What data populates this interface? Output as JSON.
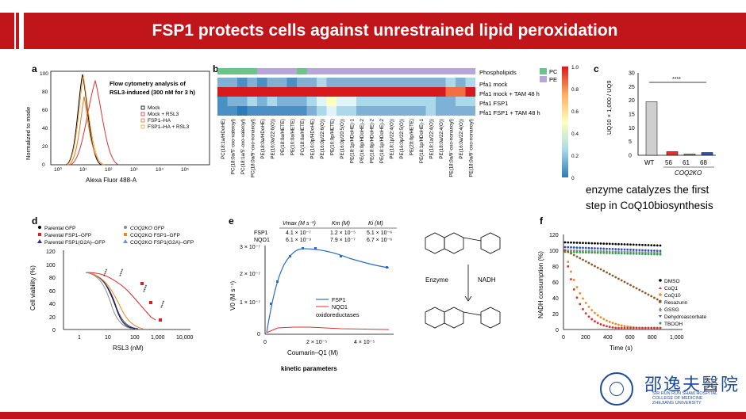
{
  "header": {
    "title": "FSP1 protects cells against unrestrained lipid peroxidation"
  },
  "panel_a": {
    "letter": "a",
    "ylabel": "Normalized to mode",
    "xlabel": "Alexa Fluor 488-A",
    "yticks": [
      "0",
      "20",
      "40",
      "60",
      "80",
      "100"
    ],
    "xticks": [
      "10⁰",
      "10¹",
      "10²",
      "10³",
      "10⁴",
      "10⁵"
    ],
    "annotation_line1": "Flow cytometry analysis of",
    "annotation_line2": "RSL3-induced (300 nM for 3 h)",
    "legend": [
      "Mock",
      "Mock + RSL3",
      "FSP1–HA",
      "FSP1–HA + RSL3"
    ],
    "colors": [
      "#000000",
      "#e03030",
      "#e07820",
      "#f2a23a"
    ]
  },
  "panel_b": {
    "letter": "b",
    "row_labels": [
      "Phospholipids",
      "Pfa1 mock",
      "Pfa1 mock + TAM 48 h",
      "Pfa1 FSP1",
      "Pfa1 FSP1 + TAM 48 h"
    ],
    "legend_pc": "PC",
    "legend_pe": "PE",
    "colorbar_ticks": [
      "1.0",
      "0.8",
      "0.6",
      "0.4",
      "0.2",
      "0"
    ],
    "col_labels": [
      "PC(18:1a/HDoHE)",
      "PC(18:0a/5’-oxo-valeroyl)",
      "PC(18:1a/5’-oxo-valeroyl)",
      "PC(18:0a/9’-oxo-nonanoyl)",
      "PE(18:0a/HDoHE)",
      "PE(16:0a/22:6(O))",
      "PE(18:0a/HETE)",
      "PE(16:0a/HETE)",
      "PC(18:0a/HETE)",
      "PE(16:0p/HDoHE)",
      "PE(16:0p/22:6(O))",
      "PE(16:0p/HETE)",
      "PE(16:0p/20:5(O))",
      "PE(18:1p/HDoHE)-1",
      "PE(16:0p/HDoHE)-2",
      "PE(18:0p/HDoHE)-2",
      "PE(18:1p/HDoHE)-2",
      "PE(18:1p/22:4(O))",
      "PE(16:0p/22:5(O))",
      "PE(20:0p/HETE)",
      "PE(18:1p/HDoHE)-1",
      "PE(18:1a/22:4(O))",
      "PE(18:0a/22:4(O))",
      "PE(18:0a/9’-oxo-nonanoyl)",
      "PE(16:0a/22:4(O))",
      "PE(18:0a/9’-oxo-nonanoyl)"
    ]
  },
  "panel_c": {
    "letter": "c",
    "ylabel": "UQ10 × 1,000 / UQ9",
    "yticks": [
      "0",
      "5",
      "10",
      "15",
      "20",
      "25",
      "30"
    ],
    "categories": [
      "WT",
      "56",
      "61",
      "68"
    ],
    "group_label": "COQ2KO",
    "significance": "****",
    "values": [
      19.5,
      1.3,
      0.4,
      1.0
    ]
  },
  "note_c": {
    "line1": "enzyme catalyzes the first",
    "line2": "step in CoQ10biosynthesis"
  },
  "panel_d": {
    "letter": "d",
    "ylabel": "Cell viability (%)",
    "xlabel": "RSL3 (nM)",
    "yticks": [
      "0",
      "20",
      "40",
      "60",
      "80",
      "100",
      "120"
    ],
    "xticks": [
      "1",
      "10",
      "100",
      "1,000",
      "10,000"
    ],
    "legend": [
      "Parental GFP",
      "Parental FSP1–GFP",
      "Parental FSP1(G2A)–GFP",
      "COQ2KO GFP",
      "COQ2KO FSP1–GFP",
      "COQ2KO FSP1(G2A)–GFP"
    ],
    "colors": [
      "#000000",
      "#e02020",
      "#303090",
      "#8a8a8a",
      "#f08a20",
      "#7a8fc8"
    ],
    "stars": [
      "****",
      "****",
      "****",
      "****"
    ]
  },
  "panel_e": {
    "letter": "e",
    "ylabel": "V0 (M s⁻¹)",
    "xlabel": "Coumarin–Q1 (M)",
    "yticks": [
      "0",
      "1 × 10⁻⁷",
      "2 × 10⁻⁷",
      "3 × 10⁻⁷"
    ],
    "xticks": [
      "0",
      "2 × 10⁻⁵",
      "4 × 10⁻⁵"
    ],
    "table_headers": [
      "Vmax (M s⁻¹)",
      "Km (M)",
      "Ki (M)"
    ],
    "table_rows": [
      {
        "name": "FSP1",
        "vmax": "4.1 × 10⁻⁷",
        "km": "1.2 × 10⁻⁵",
        "ki": "5.1 × 10⁻⁶"
      },
      {
        "name": "NQO1",
        "vmax": "6.1 × 10⁻⁹",
        "km": "7.9 × 10⁻⁷",
        "ki": "6.7 × 10⁻⁶"
      }
    ],
    "legend": [
      "FSP1",
      "NQO1"
    ],
    "legend_note": "oxidoreductases",
    "caption": "kinetic parameters",
    "scheme_left": "Enzyme",
    "scheme_right": "NADH",
    "colors": [
      "#2a6cc8",
      "#e03030"
    ]
  },
  "panel_f": {
    "letter": "f",
    "ylabel": "NADH consumption (%)",
    "xlabel": "Time (s)",
    "yticks": [
      "0",
      "20",
      "40",
      "60",
      "80",
      "100",
      "120"
    ],
    "xticks": [
      "0",
      "200",
      "400",
      "600",
      "800",
      "1,000"
    ],
    "legend": [
      "DMSO",
      "CoQ1",
      "CoQ10",
      "Resazurin",
      "GSSG",
      "Dehydroascorbate",
      "TBOOH"
    ],
    "colors": [
      "#000000",
      "#e03030",
      "#f08a20",
      "#8a5a2a",
      "#8a8a8a",
      "#3050c0",
      "#30a050"
    ]
  },
  "logo": {
    "cn": "邵逸夫醫院",
    "en1": "SIR RUN RUN SHAW HOSPITAL",
    "en2": "COLLEGE OF MEDICINE",
    "en3": "ZHEJIANG UNIVERSITY"
  }
}
